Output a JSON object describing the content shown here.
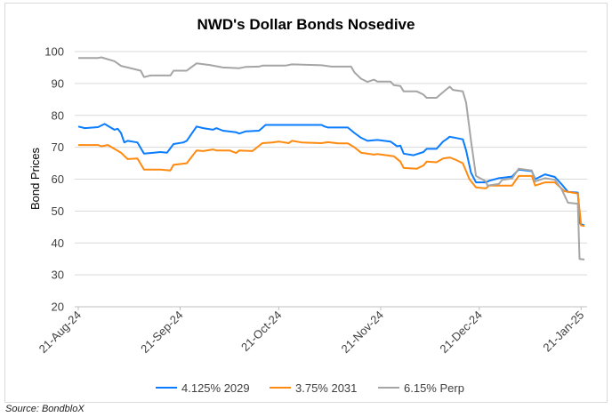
{
  "chart_data": {
    "type": "line",
    "title": "NWD's Dollar Bonds Nosedive",
    "xlabel": "",
    "ylabel": "Bond Prices",
    "x_unit": "days since 21-Aug-24",
    "ylim": [
      20,
      100
    ],
    "yticks": [
      20,
      30,
      40,
      50,
      60,
      70,
      80,
      90,
      100
    ],
    "xticks": [
      {
        "day": 0,
        "label": "21-Aug-24"
      },
      {
        "day": 31,
        "label": "21-Sep-24"
      },
      {
        "day": 61,
        "label": "21-Oct-24"
      },
      {
        "day": 92,
        "label": "21-Nov-24"
      },
      {
        "day": 122,
        "label": "21-Dec-24"
      },
      {
        "day": 153,
        "label": "21-Jan-25"
      }
    ],
    "xlim": [
      0,
      154
    ],
    "grid": true,
    "legend_position": "bottom",
    "series": [
      {
        "name": "4.125% 2029",
        "color": "#0a7cff",
        "points": [
          [
            0,
            76.5
          ],
          [
            2,
            76
          ],
          [
            6,
            76.3
          ],
          [
            8,
            77.3
          ],
          [
            11,
            75.5
          ],
          [
            12,
            75.8
          ],
          [
            13,
            74.5
          ],
          [
            14,
            71.5
          ],
          [
            15,
            72
          ],
          [
            18,
            71.5
          ],
          [
            20,
            68
          ],
          [
            23,
            68.3
          ],
          [
            25,
            68.5
          ],
          [
            27,
            68.3
          ],
          [
            29,
            71
          ],
          [
            32,
            71.5
          ],
          [
            33,
            72
          ],
          [
            36,
            76.5
          ],
          [
            38,
            76
          ],
          [
            41,
            75.5
          ],
          [
            42,
            76
          ],
          [
            44,
            75.2
          ],
          [
            48,
            74.7
          ],
          [
            49,
            74.3
          ],
          [
            51,
            75
          ],
          [
            55,
            75.2
          ],
          [
            57,
            77
          ],
          [
            65,
            77
          ],
          [
            74,
            77
          ],
          [
            75,
            76.5
          ],
          [
            76,
            76.2
          ],
          [
            82,
            76.2
          ],
          [
            84,
            74.5
          ],
          [
            86,
            73
          ],
          [
            88,
            72
          ],
          [
            91,
            72.3
          ],
          [
            95,
            71.8
          ],
          [
            97,
            70.3
          ],
          [
            98,
            70.5
          ],
          [
            99,
            68
          ],
          [
            102,
            67.5
          ],
          [
            105,
            68.5
          ],
          [
            106,
            69.5
          ],
          [
            109,
            69.5
          ],
          [
            111,
            71.8
          ],
          [
            112,
            72.5
          ],
          [
            113,
            73.3
          ],
          [
            117,
            72.5
          ],
          [
            118,
            69
          ],
          [
            119.5,
            62
          ],
          [
            121,
            59
          ],
          [
            124,
            59
          ],
          [
            125,
            59.5
          ],
          [
            128,
            60.3
          ],
          [
            132,
            60.8
          ],
          [
            134,
            63
          ],
          [
            138,
            62.5
          ],
          [
            139,
            60
          ],
          [
            142,
            61.5
          ],
          [
            145,
            60.7
          ],
          [
            147,
            58.5
          ],
          [
            149,
            56
          ],
          [
            152,
            55.8
          ],
          [
            152.7,
            46
          ],
          [
            154,
            45.5
          ]
        ]
      },
      {
        "name": "3.75% 2031",
        "color": "#ff8a10",
        "points": [
          [
            0,
            70.7
          ],
          [
            6,
            70.7
          ],
          [
            7,
            70.3
          ],
          [
            9,
            70.7
          ],
          [
            11,
            69.5
          ],
          [
            13,
            68.3
          ],
          [
            15,
            66.3
          ],
          [
            18,
            66.5
          ],
          [
            20,
            63
          ],
          [
            25,
            63
          ],
          [
            28,
            62.7
          ],
          [
            29,
            64.5
          ],
          [
            33,
            65
          ],
          [
            36,
            69
          ],
          [
            38,
            68.8
          ],
          [
            41,
            69.3
          ],
          [
            42,
            69
          ],
          [
            46,
            69
          ],
          [
            48,
            68.2
          ],
          [
            49,
            69
          ],
          [
            53,
            68.8
          ],
          [
            56,
            71.3
          ],
          [
            59,
            71.5
          ],
          [
            61,
            71.8
          ],
          [
            64,
            71.3
          ],
          [
            65,
            72
          ],
          [
            68,
            71.5
          ],
          [
            74,
            71.3
          ],
          [
            76,
            71.6
          ],
          [
            79,
            71.2
          ],
          [
            82,
            71.2
          ],
          [
            84,
            70
          ],
          [
            86,
            68.3
          ],
          [
            90,
            67.7
          ],
          [
            91,
            67.9
          ],
          [
            96,
            67.2
          ],
          [
            98,
            65.5
          ],
          [
            99,
            63.5
          ],
          [
            103,
            63.3
          ],
          [
            105,
            64.3
          ],
          [
            106,
            65.5
          ],
          [
            109,
            65.3
          ],
          [
            111,
            66.5
          ],
          [
            113,
            66.8
          ],
          [
            115,
            66
          ],
          [
            117,
            65
          ],
          [
            119,
            60
          ],
          [
            121,
            57.4
          ],
          [
            124,
            57.1
          ],
          [
            125,
            58
          ],
          [
            132,
            58
          ],
          [
            134,
            61
          ],
          [
            138,
            61
          ],
          [
            139,
            58
          ],
          [
            142,
            59
          ],
          [
            145,
            59
          ],
          [
            148,
            56.2
          ],
          [
            152,
            55.5
          ],
          [
            153,
            45.5
          ],
          [
            154,
            45.3
          ]
        ]
      },
      {
        "name": "6.15% Perp",
        "color": "#a5a5a5",
        "points": [
          [
            0,
            98
          ],
          [
            6,
            98
          ],
          [
            7,
            98.2
          ],
          [
            11,
            97
          ],
          [
            13,
            95.5
          ],
          [
            15,
            95
          ],
          [
            19,
            94
          ],
          [
            20,
            92
          ],
          [
            22,
            92.5
          ],
          [
            28,
            92.5
          ],
          [
            29,
            94
          ],
          [
            33,
            94
          ],
          [
            34,
            94.8
          ],
          [
            36,
            96.3
          ],
          [
            40,
            95.8
          ],
          [
            44,
            95
          ],
          [
            49,
            94.8
          ],
          [
            51,
            95.2
          ],
          [
            55,
            95.3
          ],
          [
            56,
            95.6
          ],
          [
            63,
            95.6
          ],
          [
            65,
            96
          ],
          [
            74,
            95.7
          ],
          [
            77,
            95.3
          ],
          [
            83,
            95.3
          ],
          [
            84,
            93.5
          ],
          [
            86,
            91.5
          ],
          [
            88,
            90.5
          ],
          [
            90,
            91.2
          ],
          [
            91,
            90.6
          ],
          [
            95,
            90.6
          ],
          [
            96,
            89.5
          ],
          [
            98,
            89.2
          ],
          [
            99,
            87.5
          ],
          [
            103,
            87.5
          ],
          [
            105,
            86.5
          ],
          [
            106,
            85.5
          ],
          [
            109,
            85.5
          ],
          [
            111,
            87.3
          ],
          [
            113,
            89
          ],
          [
            114,
            88
          ],
          [
            117,
            87.5
          ],
          [
            118,
            84
          ],
          [
            119.5,
            72
          ],
          [
            121,
            61
          ],
          [
            124,
            59.3
          ],
          [
            124.5,
            58
          ],
          [
            128,
            58.5
          ],
          [
            129,
            59.8
          ],
          [
            132,
            60.2
          ],
          [
            134,
            63.3
          ],
          [
            138,
            62.7
          ],
          [
            139,
            59.3
          ],
          [
            142,
            60.3
          ],
          [
            145,
            59.8
          ],
          [
            147,
            57
          ],
          [
            149,
            52.6
          ],
          [
            152,
            52.3
          ],
          [
            152.5,
            35
          ],
          [
            154,
            34.8
          ]
        ]
      }
    ]
  },
  "source": "Source: BondbloX"
}
